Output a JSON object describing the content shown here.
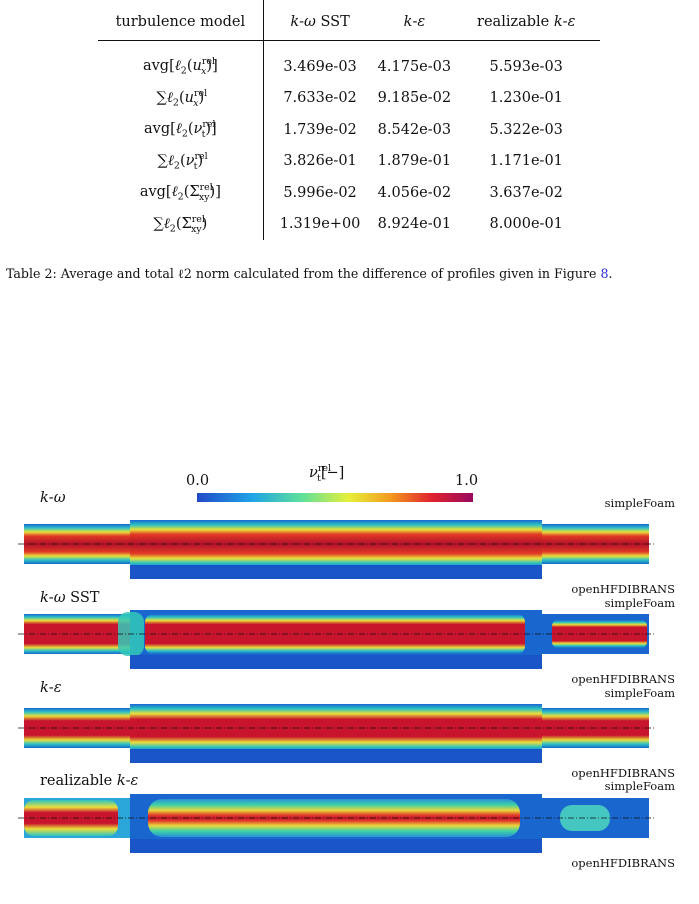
{
  "table": {
    "header": {
      "col0": "turbulence model",
      "col1": "k-ω SST",
      "col2": "k-ε",
      "col3": "realizable k-ε"
    },
    "rows": [
      {
        "label": "avg[ℓ2(u_x^rel)]",
        "v1": "3.469e-03",
        "v2": "4.175e-03",
        "v3": "5.593e-03"
      },
      {
        "label": "∑ℓ2(u_x^rel)",
        "v1": "7.633e-02",
        "v2": "9.185e-02",
        "v3": "1.230e-01"
      },
      {
        "label": "avg[ℓ2(ν_t^rel)]",
        "v1": "1.739e-02",
        "v2": "8.542e-03",
        "v3": "5.322e-03"
      },
      {
        "label": "∑ℓ2(ν_t^rel)",
        "v1": "3.826e-01",
        "v2": "1.879e-01",
        "v3": "1.171e-01"
      },
      {
        "label": "avg[ℓ2(Σ_xy^rel)]",
        "v1": "5.996e-02",
        "v2": "4.056e-02",
        "v3": "3.637e-02"
      },
      {
        "label": "∑ℓ2(Σ_xy^rel)",
        "v1": "1.319e+00",
        "v2": "8.924e-01",
        "v3": "8.000e-01"
      }
    ]
  },
  "caption": {
    "text": "Table 2: Average and total ℓ2 norm calculated from the difference of profiles given in Figure ",
    "ref": "8",
    "end": "."
  },
  "figure": {
    "colorbar": {
      "min": "0.0",
      "max": "1.0",
      "title": "ν_t^rel[−]"
    },
    "panels": [
      {
        "title": "k-ω",
        "top": "simpleFoam",
        "bottom": "openHFDIBRANS"
      },
      {
        "title": "k-ω SST",
        "top": "simpleFoam",
        "bottom": "openHFDIBRANS"
      },
      {
        "title": "k-ε",
        "top": "simpleFoam",
        "bottom": "openHFDIBRANS"
      },
      {
        "title": "realizable k-ε",
        "top": "simpleFoam",
        "bottom": "openHFDIBRANS"
      }
    ]
  },
  "colors": {
    "field_low": "#1a55c8",
    "field_high": "#b0102a",
    "link": "#2b2bd6"
  }
}
